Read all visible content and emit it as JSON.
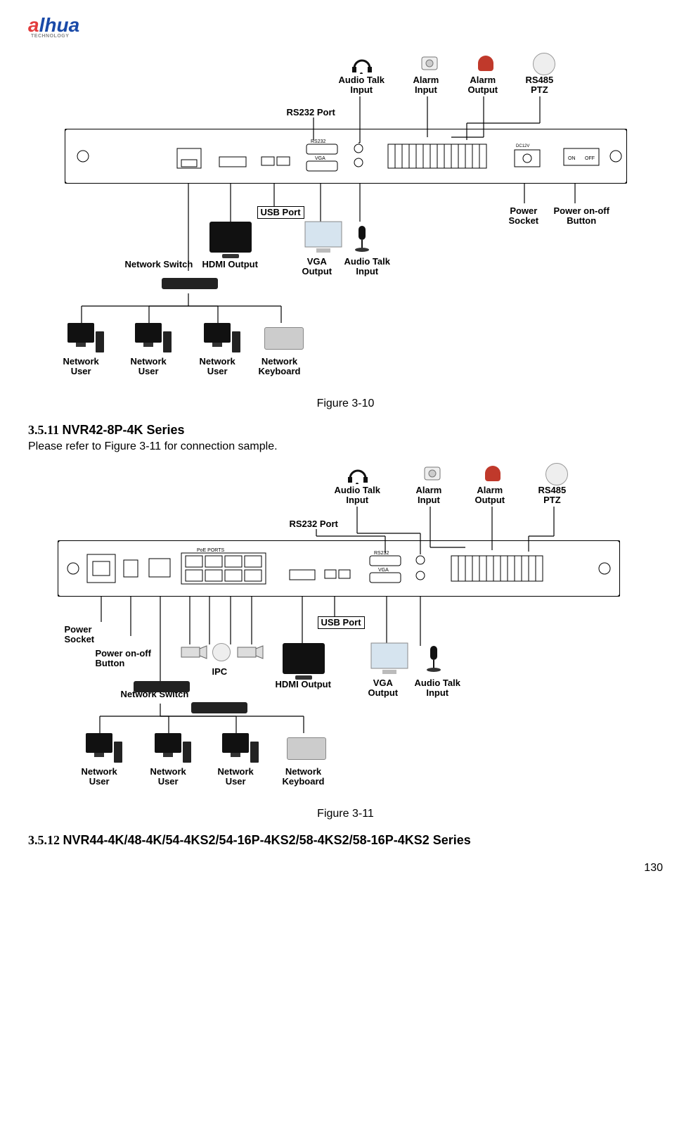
{
  "logo": {
    "a": "a",
    "lhua": "lhua",
    "sub": "TECHNOLOGY"
  },
  "fig1": {
    "caption": "Figure 3-10",
    "top_labels": {
      "audio_talk_input": "Audio Talk\nInput",
      "alarm_input": "Alarm\nInput",
      "alarm_output": "Alarm\nOutput",
      "rs485_ptz": "RS485\nPTZ"
    },
    "mid_labels": {
      "rs232_port": "RS232 Port",
      "usb_port": "USB Port",
      "hdmi_output": "HDMI Output",
      "network_switch": "Network Switch",
      "vga_output": "VGA\nOutput",
      "audio_talk_input2": "Audio Talk\nInput",
      "power_socket": "Power\nSocket",
      "power_button": "Power on-off\nButton"
    },
    "bottom_labels": {
      "net_user1": "Network\nUser",
      "net_user2": "Network\nUser",
      "net_user3": "Network\nUser",
      "net_kbd": "Network\nKeyboard"
    },
    "panel_text": {
      "rs232": "RS232",
      "vga": "VGA",
      "hdmi": "",
      "poe": ""
    },
    "colors": {
      "line": "#000000",
      "bg": "#ffffff"
    }
  },
  "sect1": {
    "num": "3.5.11",
    "title": "NVR42-8P-4K Series",
    "body": "Please refer to Figure 3-11 for connection sample."
  },
  "fig2": {
    "caption": "Figure 3-11",
    "top_labels": {
      "audio_talk_input": "Audio Talk\nInput",
      "alarm_input": "Alarm\nInput",
      "alarm_output": "Alarm\nOutput",
      "rs485_ptz": "RS485\nPTZ"
    },
    "mid_labels": {
      "rs232_port": "RS232 Port",
      "usb_port": "USB Port",
      "hdmi_output": "HDMI Output",
      "network_switch": "Network Switch",
      "vga_output": "VGA\nOutput",
      "audio_talk_input2": "Audio Talk\nInput",
      "power_socket": "Power\nSocket",
      "power_button": "Power on-off\nButton",
      "ipc": "IPC"
    },
    "bottom_labels": {
      "net_user1": "Network\nUser",
      "net_user2": "Network\nUser",
      "net_user3": "Network\nUser",
      "net_kbd": "Network\nKeyboard"
    },
    "panel_text": {
      "rs232": "RS232",
      "vga": "VGA",
      "poe": "PoE PORTS"
    },
    "colors": {
      "line": "#000000",
      "bg": "#ffffff"
    }
  },
  "sect2": {
    "num": "3.5.12",
    "title": "NVR44-4K/48-4K/54-4KS2/54-16P-4KS2/58-4KS2/58-16P-4KS2 Series"
  },
  "page_number": "130"
}
